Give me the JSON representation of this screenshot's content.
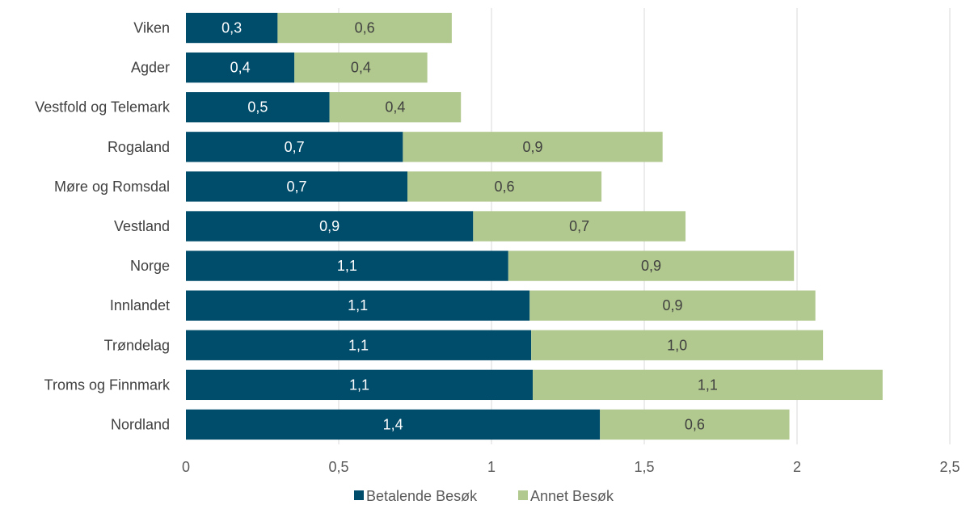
{
  "chart_data": {
    "type": "bar",
    "orientation": "horizontal",
    "stacked": true,
    "categories": [
      "Viken",
      "Agder",
      "Vestfold og Telemark",
      "Rogaland",
      "Møre og Romsdal",
      "Vestland",
      "Norge",
      "Innlandet",
      "Trøndelag",
      "Troms og Finnmark",
      "Nordland"
    ],
    "series": [
      {
        "name": "Betalende Besøk",
        "color": "#004c6b",
        "values": [
          0.3,
          0.355,
          0.47,
          0.71,
          0.725,
          0.94,
          1.055,
          1.125,
          1.13,
          1.135,
          1.355
        ],
        "labels": [
          "0,3",
          "0,4",
          "0,5",
          "0,7",
          "0,7",
          "0,9",
          "1,1",
          "1,1",
          "1,1",
          "1,1",
          "1,4"
        ]
      },
      {
        "name": "Annet Besøk",
        "color": "#b1c98e",
        "values": [
          0.57,
          0.435,
          0.43,
          0.85,
          0.635,
          0.695,
          0.935,
          0.935,
          0.955,
          1.145,
          0.62
        ],
        "labels": [
          "0,6",
          "0,4",
          "0,4",
          "0,9",
          "0,6",
          "0,7",
          "0,9",
          "0,9",
          "1,0",
          "1,1",
          "0,6"
        ]
      }
    ],
    "xlim": [
      0,
      2.5
    ],
    "x_ticks": [
      "0",
      "0,5",
      "1",
      "1,5",
      "2",
      "2,5"
    ],
    "grid": true,
    "legend_position": "bottom",
    "title": "",
    "xlabel": "",
    "ylabel": ""
  }
}
